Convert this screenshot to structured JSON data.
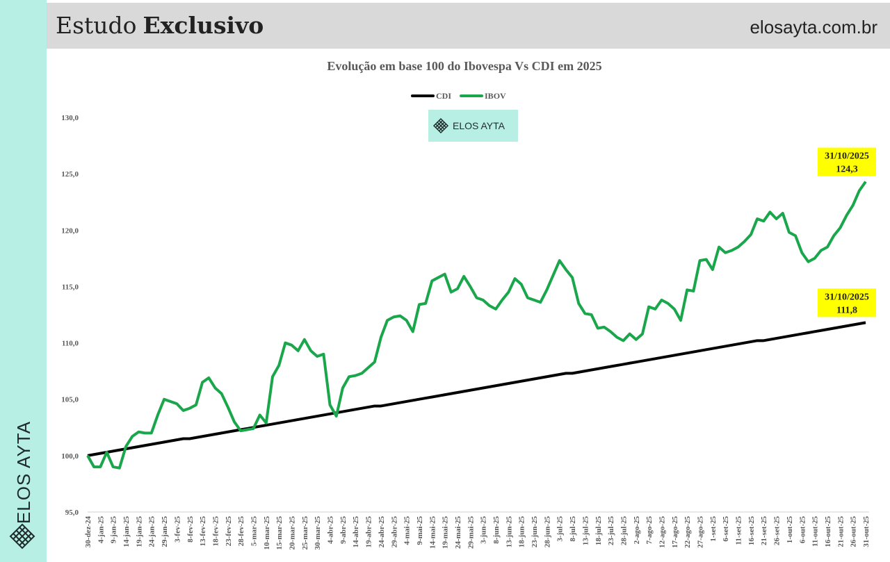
{
  "page": {
    "header": {
      "title_regular": "Estudo",
      "title_bold": "Exclusivo",
      "site": "elosayta.com.br"
    },
    "sidebar_brand": "ELOS AYTA",
    "watermark": "ELOS AYTA"
  },
  "chart_data": {
    "type": "line",
    "title": "Evolução em base 100 do Ibovespa Vs CDI em 2025",
    "categories": [
      "30-dez-24",
      null,
      "4-jan-25",
      null,
      "9-jan-25",
      null,
      "14-jan-25",
      null,
      "19-jan-25",
      null,
      "24-jan-25",
      null,
      "29-jan-25",
      null,
      "3-fev-25",
      null,
      "8-fev-25",
      null,
      "13-fev-25",
      null,
      "18-fev-25",
      null,
      "23-fev-25",
      null,
      "28-fev-25",
      null,
      "5-mar-25",
      null,
      "10-mar-25",
      null,
      "15-mar-25",
      null,
      "20-mar-25",
      null,
      "25-mar-25",
      null,
      "30-mar-25",
      null,
      "4-abr-25",
      null,
      "9-abr-25",
      null,
      "14-abr-25",
      null,
      "19-abr-25",
      null,
      "24-abr-25",
      null,
      "29-abr-25",
      null,
      "4-mai-25",
      null,
      "9-mai-25",
      null,
      "14-mai-25",
      null,
      "19-mai-25",
      null,
      "24-mai-25",
      null,
      "29-mai-25",
      null,
      "3-jun-25",
      null,
      "8-jun-25",
      null,
      "13-jun-25",
      null,
      "18-jun-25",
      null,
      "23-jun-25",
      null,
      "28-jun-25",
      null,
      "3-jul-25",
      null,
      "8-jul-25",
      null,
      "13-jul-25",
      null,
      "18-jul-25",
      null,
      "23-jul-25",
      null,
      "28-jul-25",
      null,
      "2-ago-25",
      null,
      "7-ago-25",
      null,
      "12-ago-25",
      null,
      "17-ago-25",
      null,
      "22-ago-25",
      null,
      "27-ago-25",
      null,
      "1-set-25",
      null,
      "6-set-25",
      null,
      "11-set-25",
      null,
      "16-set-25",
      null,
      "21-set-25",
      null,
      "26-set-25",
      null,
      "1-out-25",
      null,
      "6-out-25",
      null,
      "11-out-25",
      null,
      "16-out-25",
      null,
      "21-out-25",
      null,
      "26-out-25",
      null,
      "31-out-25"
    ],
    "series": [
      {
        "name": "CDI",
        "color": "#000000",
        "values": [
          100.0,
          100.1,
          100.2,
          100.3,
          100.4,
          100.5,
          100.6,
          100.7,
          100.8,
          100.9,
          101.0,
          101.1,
          101.2,
          101.3,
          101.4,
          101.5,
          101.5,
          101.6,
          101.7,
          101.8,
          101.9,
          102.0,
          102.1,
          102.2,
          102.3,
          102.4,
          102.5,
          102.6,
          102.7,
          102.8,
          102.9,
          103.0,
          103.1,
          103.2,
          103.3,
          103.4,
          103.5,
          103.6,
          103.7,
          103.8,
          103.9,
          104.0,
          104.1,
          104.2,
          104.3,
          104.4,
          104.4,
          104.5,
          104.6,
          104.7,
          104.8,
          104.9,
          105.0,
          105.1,
          105.2,
          105.3,
          105.4,
          105.5,
          105.6,
          105.7,
          105.8,
          105.9,
          106.0,
          106.1,
          106.2,
          106.3,
          106.4,
          106.5,
          106.6,
          106.7,
          106.8,
          106.9,
          107.0,
          107.1,
          107.2,
          107.3,
          107.3,
          107.4,
          107.5,
          107.6,
          107.7,
          107.8,
          107.9,
          108.0,
          108.1,
          108.2,
          108.3,
          108.4,
          108.5,
          108.6,
          108.7,
          108.8,
          108.9,
          109.0,
          109.1,
          109.2,
          109.3,
          109.4,
          109.5,
          109.6,
          109.7,
          109.8,
          109.9,
          110.0,
          110.1,
          110.2,
          110.2,
          110.3,
          110.4,
          110.5,
          110.6,
          110.7,
          110.8,
          110.9,
          111.0,
          111.1,
          111.2,
          111.3,
          111.4,
          111.5,
          111.6,
          111.7,
          111.8
        ],
        "annotation": {
          "date": "31/10/2025",
          "label": "111,8"
        }
      },
      {
        "name": "IBOV",
        "color": "#1aa64a",
        "values": [
          100,
          99,
          99,
          100.3,
          99,
          98.9,
          100.8,
          101.7,
          102.1,
          102,
          102,
          103.6,
          105,
          104.8,
          104.6,
          104,
          104.2,
          104.5,
          106.5,
          106.9,
          106,
          105.5,
          104.3,
          103,
          102.2,
          102.3,
          102.4,
          103.6,
          102.9,
          107,
          108,
          110,
          109.8,
          109.3,
          110.3,
          109.3,
          108.8,
          109,
          104.5,
          103.5,
          106,
          107,
          107.1,
          107.3,
          107.8,
          108.3,
          110.5,
          112,
          112.3,
          112.4,
          112,
          111,
          113.4,
          113.5,
          115.5,
          115.8,
          116.1,
          114.5,
          114.8,
          115.9,
          115,
          114,
          113.8,
          113.3,
          113,
          113.8,
          114.5,
          115.7,
          115.2,
          114,
          113.8,
          113.6,
          114.7,
          116,
          117.3,
          116.5,
          115.8,
          113.5,
          112.6,
          112.5,
          111.3,
          111.4,
          111,
          110.5,
          110.2,
          110.8,
          110.3,
          110.8,
          113.2,
          113,
          113.8,
          113.5,
          113,
          112,
          114.7,
          114.6,
          117.3,
          117.4,
          116.5,
          118.5,
          118,
          118.2,
          118.5,
          119,
          119.6,
          121,
          120.8,
          121.6,
          121,
          121.5,
          119.8,
          119.5,
          118,
          117.2,
          117.5,
          118.2,
          118.5,
          119.5,
          120.2,
          121.3,
          122.2,
          123.5,
          124.3
        ],
        "annotation": {
          "date": "31/10/2025",
          "label": "124,3"
        }
      }
    ],
    "ylim": [
      95,
      130
    ],
    "yticks": [
      {
        "value": 95,
        "label": "95,0"
      },
      {
        "value": 100,
        "label": "100,0"
      },
      {
        "value": 105,
        "label": "105,0"
      },
      {
        "value": 110,
        "label": "110,0"
      },
      {
        "value": 115,
        "label": "115,0"
      },
      {
        "value": 120,
        "label": "120,0"
      },
      {
        "value": 125,
        "label": "125,0"
      },
      {
        "value": 130,
        "label": "130,0"
      }
    ],
    "grid": false,
    "legend": "top"
  }
}
